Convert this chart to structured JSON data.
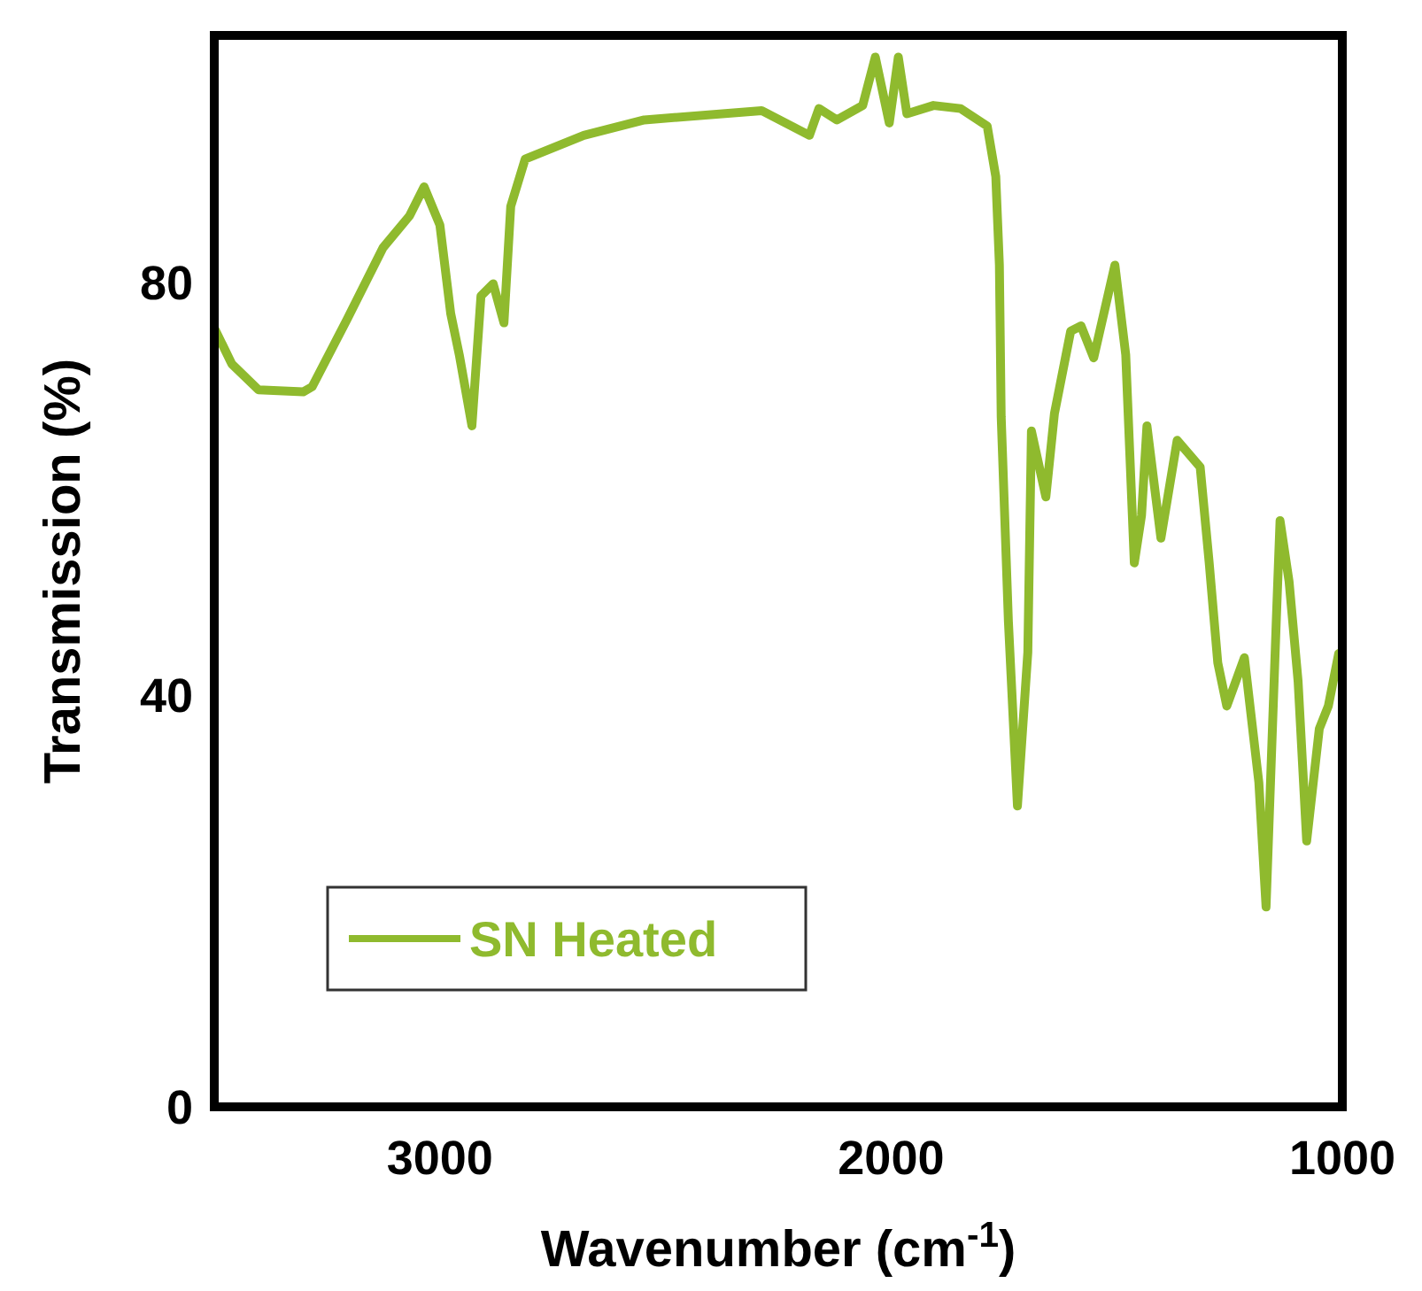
{
  "chart_data": {
    "type": "line",
    "xlabel": "Wavenumber (cm$^{-1}$)",
    "ylabel": "Transmission (%)",
    "xlim": [
      3500,
      1000
    ],
    "ylim": [
      0,
      104
    ],
    "xticks": [
      3000,
      2000,
      1000
    ],
    "yticks": [
      0,
      40,
      80
    ],
    "grid": false,
    "legend": "bottom left",
    "line_style": "solid",
    "marker": "none",
    "series": [
      {
        "name": "SN Heated",
        "color": "#8fba2e",
        "x": [
          3500,
          3461,
          3402,
          3303,
          3283,
          3205,
          3126,
          3067,
          3035,
          3000,
          2976,
          2957,
          2929,
          2909,
          2882,
          2858,
          2843,
          2811,
          2681,
          2547,
          2287,
          2181,
          2160,
          2120,
          2063,
          2035,
          2004,
          1984,
          1965,
          1906,
          1846,
          1787,
          1768,
          1760,
          1756,
          1740,
          1720,
          1697,
          1689,
          1657,
          1638,
          1602,
          1579,
          1551,
          1504,
          1480,
          1461,
          1445,
          1433,
          1402,
          1366,
          1315,
          1295,
          1276,
          1256,
          1217,
          1185,
          1169,
          1146,
          1138,
          1118,
          1098,
          1079,
          1051,
          1031,
          1008
        ],
        "values": [
          75.6,
          72.1,
          69.6,
          69.4,
          69.9,
          76.5,
          83.4,
          86.5,
          89.3,
          85.6,
          77,
          73,
          66.1,
          78.7,
          79.9,
          76.1,
          87.4,
          92,
          94.3,
          95.8,
          96.7,
          94.3,
          96.9,
          95.8,
          97.2,
          101.9,
          95.5,
          101.9,
          96.4,
          97.2,
          96.9,
          95.2,
          90.3,
          81.7,
          67,
          47.1,
          29.2,
          44.1,
          65.6,
          59.2,
          67.3,
          75.3,
          75.8,
          72.7,
          81.7,
          73,
          52.8,
          57.4,
          66.1,
          55.2,
          64.7,
          62.1,
          52.8,
          43.1,
          38.9,
          43.6,
          31.5,
          19.4,
          47.6,
          56.9,
          51,
          41.3,
          25.8,
          36.7,
          38.9,
          44
        ]
      }
    ]
  }
}
